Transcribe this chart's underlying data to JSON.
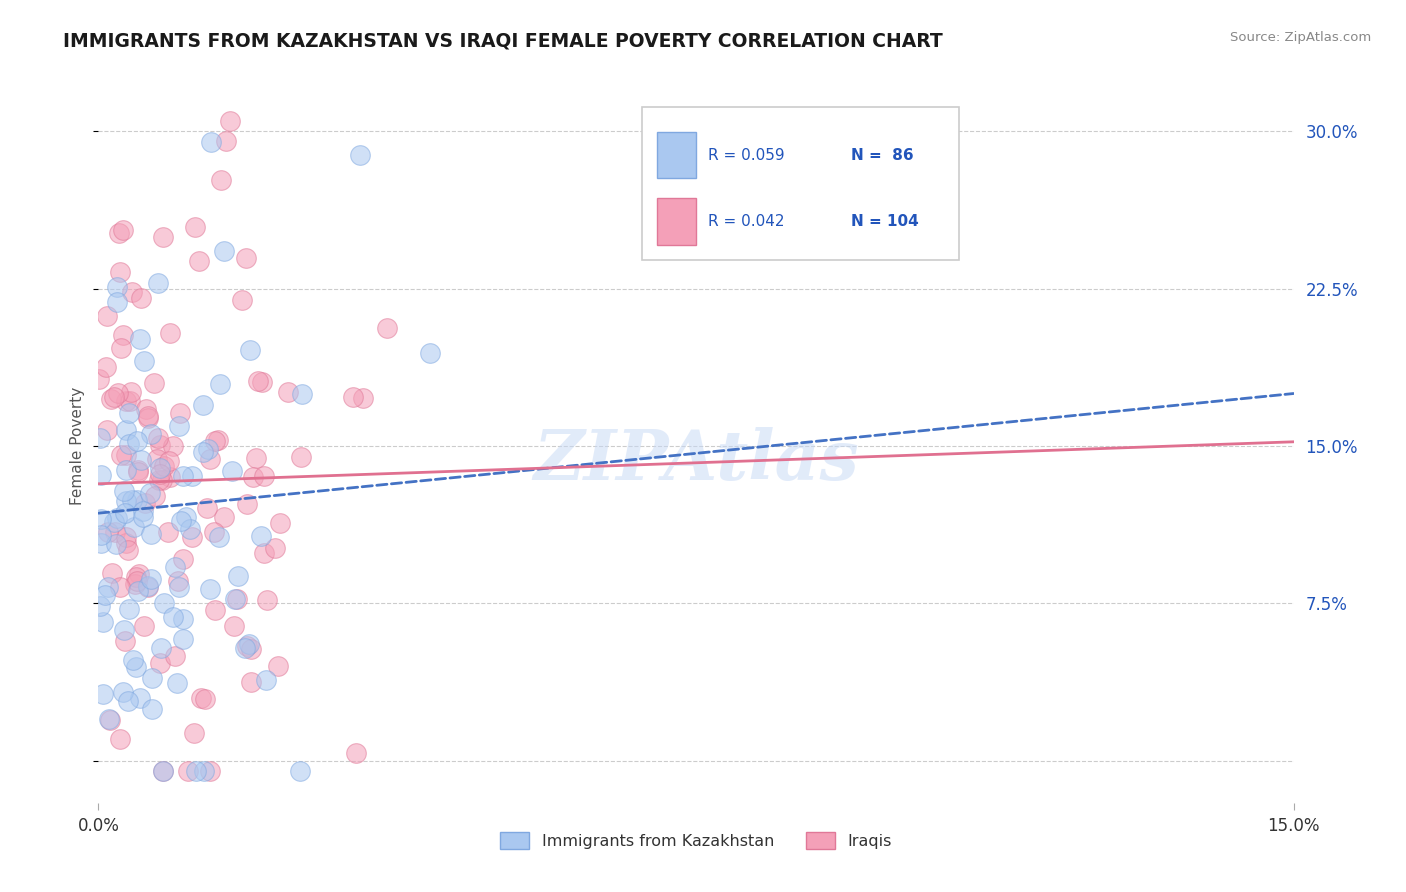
{
  "title": "IMMIGRANTS FROM KAZAKHSTAN VS IRAQI FEMALE POVERTY CORRELATION CHART",
  "source_text": "Source: ZipAtlas.com",
  "ylabel": "Female Poverty",
  "legend_bottom": [
    "Immigrants from Kazakhstan",
    "Iraqis"
  ],
  "legend_R1": "R = 0.059",
  "legend_N1": "N =  86",
  "legend_R2": "R = 0.042",
  "legend_N2": "N = 104",
  "color_kaz": "#aac8f0",
  "color_iraq": "#f4a0b8",
  "color_kaz_edge": "#80a8e0",
  "color_iraq_edge": "#e07898",
  "color_kaz_line": "#4472c4",
  "color_iraq_line": "#e07090",
  "color_blue_text": "#2255bb",
  "xlim": [
    0.0,
    0.15
  ],
  "ylim": [
    -0.02,
    0.32
  ],
  "yticks": [
    0.0,
    0.075,
    0.15,
    0.225,
    0.3
  ],
  "ytick_labels": [
    "",
    "7.5%",
    "15.0%",
    "22.5%",
    "30.0%"
  ],
  "xticks": [
    0.0,
    0.15
  ],
  "xtick_labels": [
    "0.0%",
    "15.0%"
  ],
  "watermark": "ZIPAtlas",
  "kaz_line_x0": 0.0,
  "kaz_line_y0": 0.118,
  "kaz_line_x1": 0.15,
  "kaz_line_y1": 0.175,
  "iraq_line_x0": 0.0,
  "iraq_line_y0": 0.132,
  "iraq_line_x1": 0.15,
  "iraq_line_y1": 0.152
}
